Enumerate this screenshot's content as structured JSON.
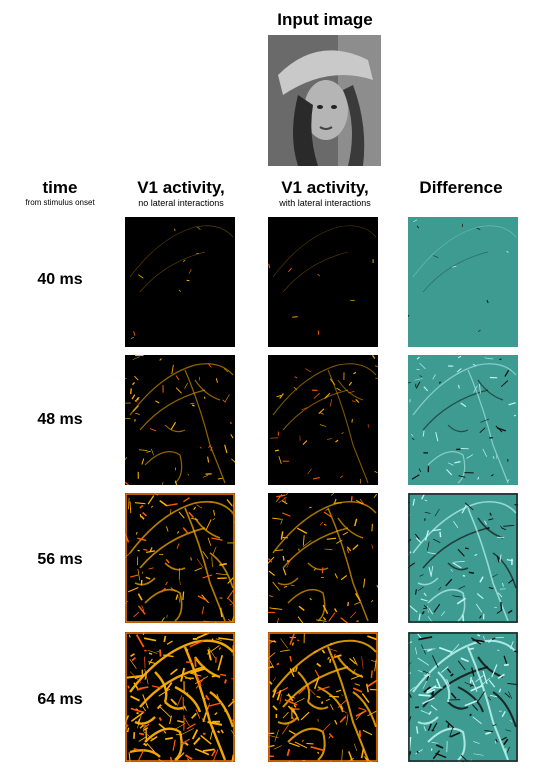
{
  "title": "Input image",
  "columns": {
    "time": {
      "label": "time",
      "sub": "from stimulus onset"
    },
    "v1_no_lateral": {
      "label": "V1 activity,",
      "sub": "no lateral interactions"
    },
    "v1_lateral": {
      "label": "V1 activity,",
      "sub": "with lateral interactions"
    },
    "difference": {
      "label": "Difference"
    }
  },
  "rows": [
    {
      "time": "40 ms"
    },
    {
      "time": "48 ms"
    },
    {
      "time": "56 ms"
    },
    {
      "time": "64 ms"
    }
  ],
  "colors": {
    "background": "#ffffff",
    "activity_bg": "#000000",
    "activity_edge": "#ffb000",
    "difference_bg": "#3d9b91",
    "difference_edge_pos": "#bff6f3",
    "difference_edge_neg": "#111111"
  }
}
